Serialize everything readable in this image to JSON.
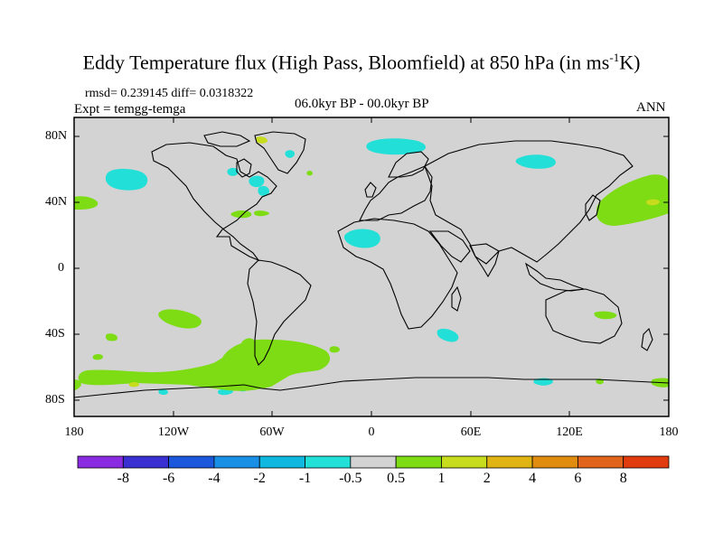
{
  "title": {
    "main": "Eddy Temperature flux (High Pass, Bloomfield) at 850 hPa (in ms",
    "exponent": "-1",
    "suffix": "K)"
  },
  "subtitle": {
    "stats": "rmsd= 0.239145 diff= 0.0318322",
    "experiment": "Expt = temgg-temga",
    "period": "06.0kyr BP - 00.0kyr BP",
    "season": "ANN"
  },
  "axes": {
    "y_labels": [
      "80N",
      "40N",
      "0",
      "40S",
      "80S"
    ],
    "x_labels": [
      "180",
      "120W",
      "60W",
      "0",
      "60E",
      "120E",
      "180"
    ]
  },
  "colorbar": {
    "colors": [
      "#8a2be2",
      "#3a2fd0",
      "#1c58dc",
      "#1a8fe6",
      "#10b8e0",
      "#22e0d8",
      "#d3d3d3",
      "#7ddc14",
      "#c6dc1c",
      "#e0b414",
      "#e08c10",
      "#e0641c",
      "#e03c10"
    ],
    "labels": [
      "-8",
      "-6",
      "-4",
      "-2",
      "-1",
      "-0.5",
      "0.5",
      "1",
      "2",
      "4",
      "6",
      "8"
    ]
  },
  "map_colors": {
    "background": "#d3d3d3",
    "positive": "#7ddc14",
    "negative": "#22e0d8",
    "small_positive": "#c6dc1c"
  }
}
